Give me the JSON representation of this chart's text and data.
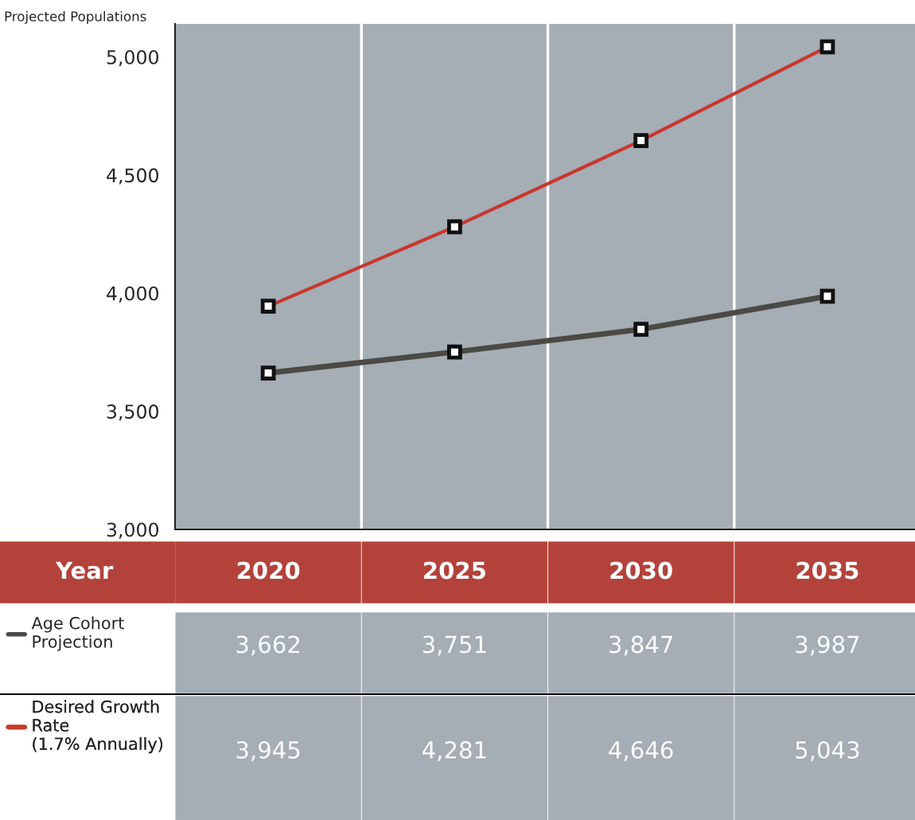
{
  "chart_data": {
    "type": "line",
    "ylabel": "Projected Populations",
    "xlabel": "Year",
    "categories": [
      "2020",
      "2025",
      "2030",
      "2035"
    ],
    "series": [
      {
        "name": "Age Cohort\nProjection",
        "color": "#4b4a45",
        "values": [
          3662,
          3751,
          3847,
          3987
        ],
        "value_labels": [
          "3,662",
          "3,751",
          "3,847",
          "3,987"
        ]
      },
      {
        "name": "Desired Growth\nRate\n(1.7% Annually)",
        "color": "#c8372d",
        "values": [
          3945,
          4281,
          4646,
          5043
        ],
        "value_labels": [
          "3,945",
          "4,281",
          "4,646",
          "5,043"
        ]
      }
    ],
    "ylim": [
      3000,
      5140
    ],
    "yticks": [
      {
        "value": 3000,
        "label": "3,000"
      },
      {
        "value": 3500,
        "label": "3,500"
      },
      {
        "value": 4000,
        "label": "4,000"
      },
      {
        "value": 4500,
        "label": "4,500"
      },
      {
        "value": 5000,
        "label": "5,000"
      }
    ],
    "marker": "square",
    "grid": "x",
    "legend": "bottom left"
  }
}
